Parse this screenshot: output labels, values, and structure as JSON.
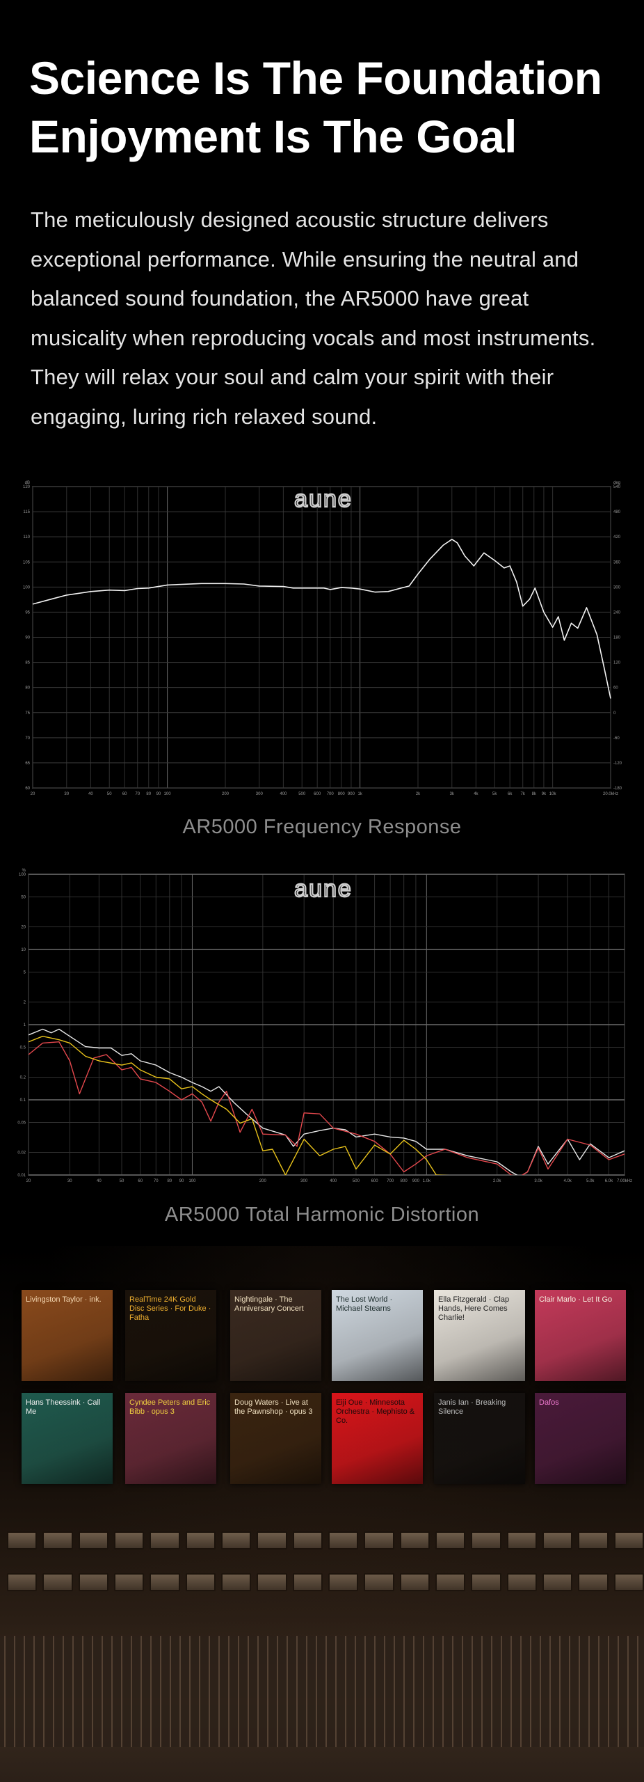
{
  "header": {
    "title_line1": "Science Is The Foundation",
    "title_line2": "Enjoyment Is The Goal",
    "description": "The meticulously designed acoustic structure delivers exceptional performance. While ensuring the neutral and balanced sound foundation, the AR5000 have great musicality when reproducing vocals and most instruments. They will relax your soul and calm your spirit with their engaging, luring rich relaxed sound."
  },
  "logo_text": "aune",
  "chart_data": [
    {
      "type": "line",
      "caption": "AR5000 Frequency Response",
      "ylabel": "dB",
      "ylabel_right": "deg",
      "x_scale": "log",
      "xlim": [
        20,
        20000
      ],
      "ylim": [
        60,
        120
      ],
      "ylim_right": [
        -180,
        540
      ],
      "grid": true,
      "x_ticks": [
        "20",
        "30",
        "40",
        "50",
        "60",
        "70",
        "80",
        "90",
        "100",
        "200",
        "300",
        "400",
        "500",
        "600",
        "700",
        "800",
        "900",
        "1k",
        "2k",
        "3k",
        "4k",
        "5k",
        "6k",
        "7k",
        "8k",
        "9k",
        "10k",
        "20.0kHz"
      ],
      "x_tick_values": [
        20,
        30,
        40,
        50,
        60,
        70,
        80,
        90,
        100,
        200,
        300,
        400,
        500,
        600,
        700,
        800,
        900,
        1000,
        2000,
        3000,
        4000,
        5000,
        6000,
        7000,
        8000,
        9000,
        10000,
        20000
      ],
      "y_ticks": [
        120,
        115,
        110,
        105,
        100,
        95,
        90,
        85,
        80,
        75,
        70,
        65,
        60
      ],
      "y_ticks_right": [
        540,
        480,
        420,
        360,
        300,
        240,
        180,
        120,
        60,
        0,
        -60,
        -120,
        -180
      ],
      "series": [
        {
          "color": "#f2f2f2",
          "x": [
            20,
            25,
            30,
            40,
            50,
            60,
            70,
            80,
            100,
            150,
            200,
            250,
            300,
            400,
            450,
            600,
            650,
            700,
            800,
            900,
            1000,
            1200,
            1400,
            1600,
            1800,
            2000,
            2300,
            2700,
            3000,
            3200,
            3500,
            3900,
            4400,
            5000,
            5600,
            6000,
            6500,
            7000,
            7600,
            8100,
            9000,
            10000,
            10700,
            11500,
            12500,
            13500,
            15000,
            17000,
            18500,
            20000
          ],
          "y": [
            96.6,
            97.6,
            98.4,
            99.1,
            99.4,
            99.3,
            99.7,
            99.8,
            100.4,
            100.7,
            100.7,
            100.6,
            100.2,
            100.1,
            99.8,
            99.8,
            99.8,
            99.5,
            99.9,
            99.8,
            99.6,
            99.0,
            99.1,
            99.7,
            100.2,
            102.6,
            105.5,
            108.3,
            109.5,
            108.8,
            106.2,
            104.2,
            106.8,
            105.3,
            103.8,
            104.2,
            101.0,
            96.2,
            97.6,
            99.8,
            95.0,
            92.0,
            94.1,
            89.4,
            92.8,
            91.8,
            95.9,
            90.5,
            84.0,
            77.8
          ]
        }
      ]
    },
    {
      "type": "line",
      "caption": "AR5000 Total Harmonic Distortion",
      "ylabel": "%",
      "x_scale": "log",
      "y_scale": "log",
      "xlim": [
        20,
        7000
      ],
      "ylim": [
        0.01,
        100
      ],
      "grid": true,
      "x_ticks": [
        "20",
        "30",
        "40",
        "50",
        "60",
        "70",
        "80",
        "90",
        "100",
        "200",
        "300",
        "400",
        "500",
        "600",
        "700",
        "800",
        "900",
        "1.0k",
        "2.0k",
        "3.0k",
        "4.0k",
        "5.0k",
        "6.0k",
        "7.00kHz"
      ],
      "x_tick_values": [
        20,
        30,
        40,
        50,
        60,
        70,
        80,
        90,
        100,
        200,
        300,
        400,
        500,
        600,
        700,
        800,
        900,
        1000,
        2000,
        3000,
        4000,
        5000,
        6000,
        7000
      ],
      "y_ticks": [
        "100",
        "50",
        "20",
        "10",
        "5",
        "2",
        "1",
        "0.5",
        "0.2",
        "0.1",
        "0.05",
        "0.02",
        "0.01"
      ],
      "y_tick_values": [
        100,
        50,
        20,
        10,
        5,
        2,
        1,
        0.5,
        0.2,
        0.1,
        0.05,
        0.02,
        0.01
      ],
      "series": [
        {
          "color": "#e8e8e8",
          "x": [
            20,
            23,
            25,
            27,
            30,
            35,
            40,
            45,
            50,
            55,
            60,
            70,
            80,
            90,
            100,
            110,
            120,
            130,
            150,
            170,
            200,
            250,
            270,
            300,
            350,
            400,
            450,
            500,
            600,
            700,
            800,
            900,
            1000,
            1200,
            1500,
            2000,
            2300,
            2500,
            2700,
            3000,
            3300,
            4000,
            4500,
            5000,
            6000,
            7000
          ],
          "y": [
            0.73,
            0.87,
            0.78,
            0.87,
            0.7,
            0.51,
            0.49,
            0.49,
            0.39,
            0.41,
            0.33,
            0.29,
            0.23,
            0.2,
            0.17,
            0.15,
            0.13,
            0.15,
            0.093,
            0.065,
            0.042,
            0.034,
            0.024,
            0.035,
            0.039,
            0.042,
            0.04,
            0.032,
            0.035,
            0.032,
            0.031,
            0.028,
            0.022,
            0.022,
            0.018,
            0.015,
            0.011,
            0.0095,
            0.011,
            0.024,
            0.014,
            0.03,
            0.016,
            0.026,
            0.017,
            0.021
          ]
        },
        {
          "color": "#e5484d",
          "x": [
            20,
            23,
            27,
            30,
            33,
            35,
            38,
            43,
            50,
            55,
            60,
            70,
            80,
            90,
            100,
            110,
            120,
            130,
            140,
            160,
            180,
            200,
            250,
            280,
            300,
            350,
            400,
            500,
            600,
            700,
            800,
            900,
            1000,
            1200,
            1500,
            2000,
            2300,
            2500,
            2700,
            3000,
            3300,
            4000,
            5000,
            6000,
            7000
          ],
          "y": [
            0.4,
            0.57,
            0.59,
            0.33,
            0.12,
            0.19,
            0.36,
            0.4,
            0.25,
            0.27,
            0.19,
            0.17,
            0.13,
            0.1,
            0.12,
            0.093,
            0.052,
            0.093,
            0.13,
            0.037,
            0.075,
            0.035,
            0.034,
            0.024,
            0.067,
            0.065,
            0.042,
            0.035,
            0.028,
            0.019,
            0.011,
            0.014,
            0.018,
            0.022,
            0.017,
            0.014,
            0.01,
            0.0095,
            0.011,
            0.023,
            0.012,
            0.03,
            0.025,
            0.016,
            0.019
          ]
        },
        {
          "color": "#e8c21a",
          "x": [
            20,
            23,
            27,
            30,
            35,
            40,
            50,
            55,
            60,
            70,
            80,
            90,
            100,
            110,
            120,
            140,
            160,
            180,
            200,
            220,
            250,
            300,
            350,
            400,
            450,
            500,
            600,
            700,
            800,
            900,
            1000,
            1100,
            1300
          ],
          "y": [
            0.59,
            0.7,
            0.63,
            0.57,
            0.38,
            0.33,
            0.29,
            0.31,
            0.25,
            0.2,
            0.19,
            0.14,
            0.15,
            0.12,
            0.1,
            0.075,
            0.049,
            0.056,
            0.021,
            0.022,
            0.01,
            0.03,
            0.018,
            0.022,
            0.024,
            0.012,
            0.025,
            0.019,
            0.029,
            0.022,
            0.016,
            0.01,
            0.0098
          ]
        }
      ]
    }
  ],
  "albums": [
    {
      "title": "Livingston Taylor · ink.",
      "bg": "#8a4a1c",
      "fg": "#f3d6b0"
    },
    {
      "title": "RealTime 24K Gold Disc Series · For Duke · Fatha",
      "bg": "#1a120a",
      "fg": "#f0b030"
    },
    {
      "title": "Nightingale · The Anniversary Concert",
      "bg": "#3a2a20",
      "fg": "#f0e0c0"
    },
    {
      "title": "The Lost World · Michael Stearns",
      "bg": "#cfd8e0",
      "fg": "#1a2a2a"
    },
    {
      "title": "Ella Fitzgerald · Clap Hands, Here Comes Charlie!",
      "bg": "#e8e4dc",
      "fg": "#222222"
    },
    {
      "title": "Clair Marlo · Let It Go",
      "bg": "#c43a5a",
      "fg": "#f6f0e0"
    },
    {
      "title": "Hans Theessink · Call Me",
      "bg": "#1f5a4e",
      "fg": "#f0f0f0"
    },
    {
      "title": "Cyndee Peters and Eric Bibb · opus 3",
      "bg": "#6a2a3a",
      "fg": "#f0d040"
    },
    {
      "title": "Doug Waters · Live at the Pawnshop · opus 3",
      "bg": "#3a2410",
      "fg": "#f0e0c0"
    },
    {
      "title": "Eiji Oue · Minnesota Orchestra · Mephisto & Co.",
      "bg": "#d8141a",
      "fg": "#1a0a0a"
    },
    {
      "title": "Janis Ian · Breaking Silence",
      "bg": "#14110f",
      "fg": "#bbbbbb"
    },
    {
      "title": "Dafos",
      "bg": "#4a1a3a",
      "fg": "#f07ad0"
    }
  ]
}
